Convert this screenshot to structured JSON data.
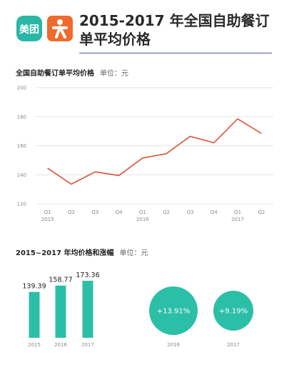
{
  "header": {
    "title": "2015-2017 年全国自助餐订单平均价格",
    "logo_meituan_text": "美团",
    "logo_meituan_icon": "meituan-logo",
    "logo_dianping_icon": "dianping-logo"
  },
  "colors": {
    "teal": "#2cbfa8",
    "line": "#d9553b",
    "navy": "#4b5a8f"
  },
  "chart_data": [
    {
      "type": "line",
      "title": "全国自助餐订单平均价格",
      "unit": "单位：元",
      "categories": [
        "Q1",
        "Q2",
        "Q3",
        "Q4",
        "Q1",
        "Q2",
        "Q3",
        "Q4",
        "Q1",
        "Q2"
      ],
      "year_labels": [
        "2015",
        "",
        "",
        "",
        "2016",
        "",
        "",
        "",
        "2017",
        ""
      ],
      "series": [
        {
          "values": [
            144.5,
            133.5,
            142.0,
            139.5,
            151.5,
            154.5,
            166.5,
            162.0,
            178.5,
            168.5
          ]
        }
      ],
      "ylim": [
        120,
        200
      ],
      "yticks": [
        120,
        140,
        160,
        180,
        200
      ],
      "grid": true
    },
    {
      "type": "bar",
      "title": "2015~2017 年均价格和涨幅",
      "unit": "单位：元",
      "categories": [
        "2015",
        "2016",
        "2017"
      ],
      "values": [
        139.39,
        158.77,
        173.36
      ],
      "value_labels": [
        "139.39",
        "158.77",
        "173.36"
      ],
      "ylim": [
        0,
        173.36
      ]
    },
    {
      "type": "bubble",
      "categories": [
        "2016",
        "2017"
      ],
      "values": [
        13.91,
        9.19
      ],
      "labels": [
        "+13.91%",
        "+9.19%"
      ]
    }
  ]
}
